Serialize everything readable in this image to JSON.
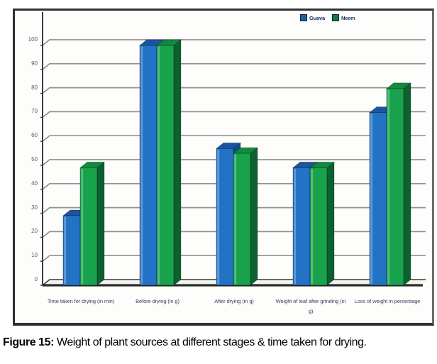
{
  "figure": {
    "caption_prefix": "Figure 15:",
    "caption_text": " Weight of plant sources at different stages & time taken for drying."
  },
  "chart_data": {
    "type": "bar",
    "style": "3d-column",
    "title": "",
    "xlabel": "",
    "ylabel": "",
    "ylim": [
      0,
      100
    ],
    "yticks": [
      0,
      10,
      20,
      30,
      40,
      50,
      60,
      70,
      80,
      90,
      100
    ],
    "grid": true,
    "legend_position": "top-right",
    "categories": [
      "Time taken for drying (in min)",
      "Before drying (in g)",
      "After drying (in g)",
      "Weight of leaf after grinding  (in g)",
      "Loss of weight in percentage"
    ],
    "series": [
      {
        "name": "Guava",
        "values": [
          29,
          100,
          57,
          49,
          72
        ],
        "color": "#2273C6",
        "color_top": "#1B55A1",
        "color_side": "#154A8D",
        "legend_color": "#1F5FA8"
      },
      {
        "name": "Neem",
        "values": [
          49,
          100,
          55,
          49,
          82
        ],
        "color": "#17A24B",
        "color_top": "#108B3E",
        "color_side": "#0B612F",
        "legend_color": "#0F7B45"
      }
    ],
    "colors": {
      "gridline": "#8f948f",
      "axis": "#3a3a3a",
      "floor": "#2b2b2b",
      "tick_label": "#5c5c66",
      "category_label": "#3f4066"
    }
  }
}
